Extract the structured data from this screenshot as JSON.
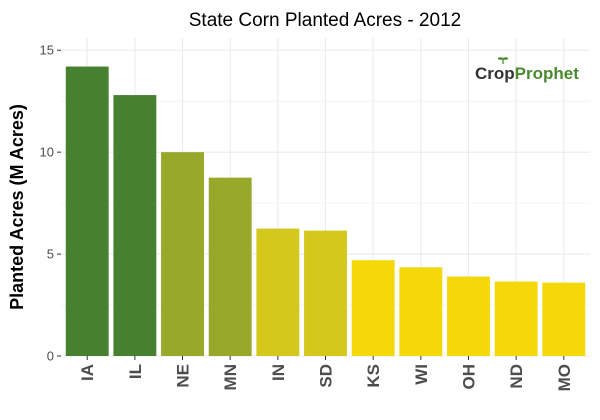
{
  "chart_data": {
    "type": "bar",
    "title": "State Corn Planted Acres - 2012",
    "xlabel": "",
    "ylabel": "Planted Acres (M Acres)",
    "categories": [
      "IA",
      "IL",
      "NE",
      "MN",
      "IN",
      "SD",
      "KS",
      "WI",
      "OH",
      "ND",
      "MO"
    ],
    "values": [
      14.2,
      12.8,
      10.0,
      8.75,
      6.25,
      6.15,
      4.7,
      4.35,
      3.9,
      3.65,
      3.6
    ],
    "bar_colors": [
      "#46812f",
      "#46812f",
      "#98a82b",
      "#98a82b",
      "#d5c81c",
      "#d5c81c",
      "#f5d80a",
      "#f5d80a",
      "#f5d80a",
      "#f5d80a",
      "#f5d80a"
    ],
    "ylim": [
      0,
      15.6
    ],
    "yticks": [
      0,
      5,
      10,
      15
    ],
    "grid": true,
    "panel_background": "#ffffff",
    "grid_color": "#ebebeb"
  },
  "logo": {
    "text_dark": "Crop",
    "text_green": "Prophet",
    "dark_color": "#333333",
    "green_color": "#4a8a2e"
  }
}
